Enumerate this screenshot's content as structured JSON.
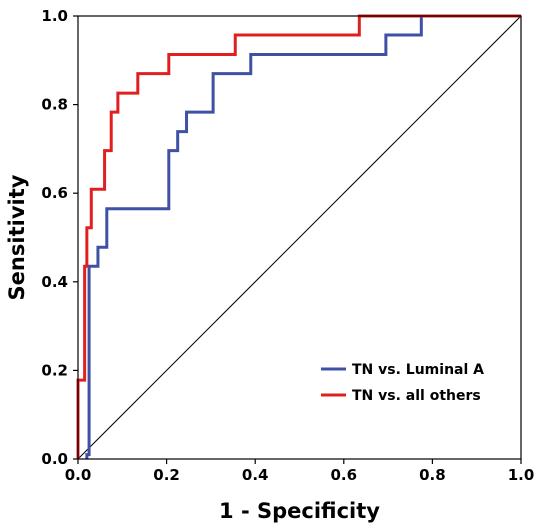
{
  "chart_data": {
    "type": "line",
    "xlabel": "1 - Specificity",
    "ylabel": "Sensitivity",
    "xlim": [
      0,
      1
    ],
    "ylim": [
      0,
      1
    ],
    "xticks": [
      "0.0",
      "0.2",
      "0.4",
      "0.6",
      "0.8",
      "1.0"
    ],
    "yticks": [
      "0.0",
      "0.2",
      "0.4",
      "0.6",
      "0.8",
      "1.0"
    ],
    "grid": false,
    "legend_position": "bottom-right",
    "reference_line": {
      "points": [
        [
          0,
          0
        ],
        [
          1,
          1
        ]
      ],
      "color": "#000000"
    },
    "series": [
      {
        "name": "TN vs. Luminal A",
        "color": "#3f51a5",
        "points": [
          [
            0.02,
            0.0
          ],
          [
            0.02,
            0.01
          ],
          [
            0.025,
            0.01
          ],
          [
            0.025,
            0.435
          ],
          [
            0.045,
            0.435
          ],
          [
            0.045,
            0.478
          ],
          [
            0.065,
            0.478
          ],
          [
            0.065,
            0.565
          ],
          [
            0.205,
            0.565
          ],
          [
            0.205,
            0.696
          ],
          [
            0.225,
            0.696
          ],
          [
            0.225,
            0.739
          ],
          [
            0.245,
            0.739
          ],
          [
            0.245,
            0.783
          ],
          [
            0.305,
            0.783
          ],
          [
            0.305,
            0.87
          ],
          [
            0.39,
            0.87
          ],
          [
            0.39,
            0.913
          ],
          [
            0.695,
            0.913
          ],
          [
            0.695,
            0.957
          ],
          [
            0.775,
            0.957
          ],
          [
            0.775,
            1.0
          ],
          [
            1.0,
            1.0
          ]
        ]
      },
      {
        "name": "TN vs. all others",
        "color": "#e02020",
        "points": [
          [
            0.0,
            0.0
          ],
          [
            0.0,
            0.178
          ],
          [
            0.015,
            0.178
          ],
          [
            0.015,
            0.435
          ],
          [
            0.02,
            0.435
          ],
          [
            0.02,
            0.522
          ],
          [
            0.03,
            0.522
          ],
          [
            0.03,
            0.609
          ],
          [
            0.06,
            0.609
          ],
          [
            0.06,
            0.696
          ],
          [
            0.075,
            0.696
          ],
          [
            0.075,
            0.783
          ],
          [
            0.09,
            0.783
          ],
          [
            0.09,
            0.826
          ],
          [
            0.135,
            0.826
          ],
          [
            0.135,
            0.87
          ],
          [
            0.205,
            0.87
          ],
          [
            0.205,
            0.913
          ],
          [
            0.355,
            0.913
          ],
          [
            0.355,
            0.957
          ],
          [
            0.635,
            0.957
          ],
          [
            0.635,
            1.0
          ],
          [
            1.0,
            1.0
          ]
        ]
      }
    ]
  }
}
